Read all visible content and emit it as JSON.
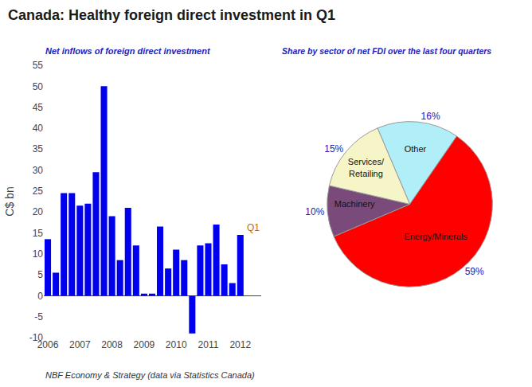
{
  "chart_data": [
    {
      "type": "bar",
      "title": "Canada: Healthy foreign direct investment in Q1",
      "subtitle": "Net inflows of foreign direct investment",
      "footer": "NBF Economy & Strategy (data via Statistics Canada)",
      "ylabel": "C$ bn",
      "categories": [
        "2006",
        null,
        null,
        null,
        "2007",
        null,
        null,
        null,
        "2008",
        null,
        null,
        null,
        "2009",
        null,
        null,
        null,
        "2010",
        null,
        null,
        null,
        "2011",
        null,
        null,
        null,
        "2012"
      ],
      "values": [
        13.5,
        5.5,
        24.5,
        24.5,
        21.5,
        22.0,
        29.5,
        50.0,
        19.0,
        8.5,
        21.0,
        12.0,
        0.5,
        0.5,
        16.5,
        6.5,
        11.0,
        8.5,
        -9.0,
        12.0,
        12.5,
        17.0,
        7.5,
        3.0,
        14.5
      ],
      "color": "#0000ee",
      "ylim": [
        -10,
        55
      ],
      "yticks": [
        -10,
        -5,
        0,
        5,
        10,
        15,
        20,
        25,
        30,
        35,
        40,
        45,
        50,
        55
      ],
      "grid": false,
      "annotations": [
        {
          "text": "Q1"
        }
      ]
    },
    {
      "type": "pie",
      "subtitle": "Share by sector of net FDI over the last four quarters",
      "categories": [
        "Other",
        "Energy/Minerals",
        "Machinery",
        "Services/\nRetailing"
      ],
      "values": [
        16,
        59,
        10,
        15
      ],
      "value_labels": [
        "16%",
        "59%",
        "10%",
        "15%"
      ],
      "colors": [
        "#b0eef8",
        "#ff0000",
        "#7a4a7a",
        "#f5f5c8"
      ],
      "data_labels": true
    }
  ]
}
